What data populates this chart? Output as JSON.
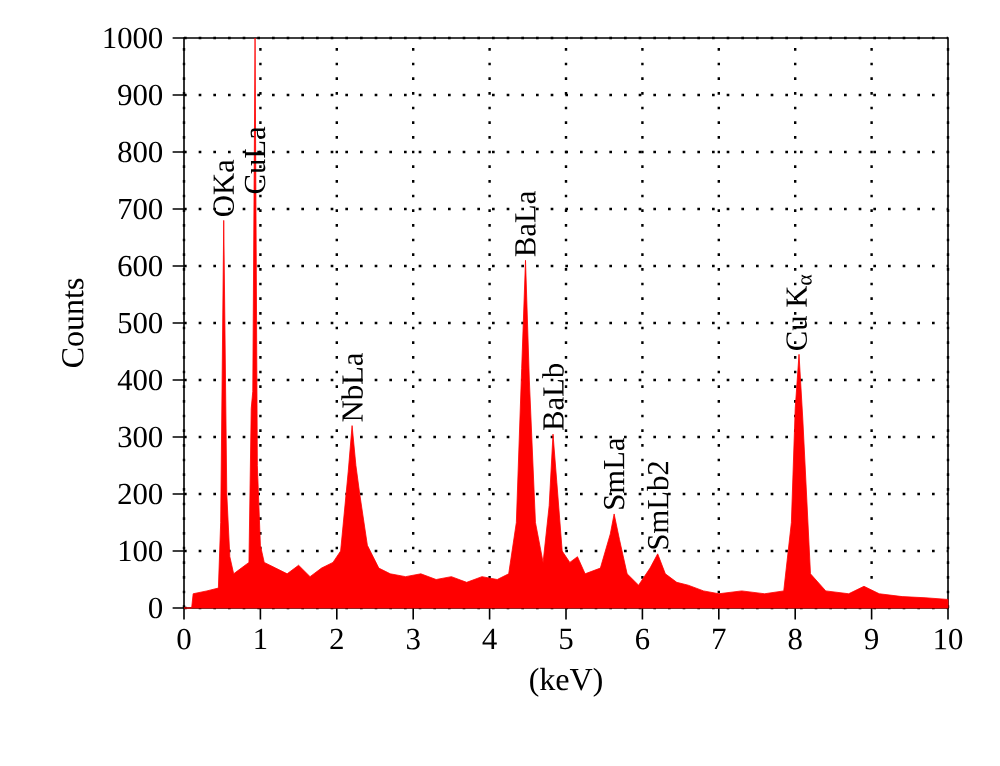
{
  "chart_data": {
    "type": "area",
    "xlabel": "(keV)",
    "ylabel": "Counts",
    "xlim": [
      0,
      10
    ],
    "xticks": [
      0,
      1,
      2,
      3,
      4,
      5,
      6,
      7,
      8,
      9,
      10
    ],
    "ylim": [
      0,
      1000
    ],
    "yticks": [
      0,
      100,
      200,
      300,
      400,
      500,
      600,
      700,
      800,
      900,
      1000
    ],
    "grid": true,
    "series": [
      {
        "color": "#ff0000",
        "x": [
          0,
          0.1,
          0.12,
          0.3,
          0.45,
          0.48,
          0.52,
          0.56,
          0.6,
          0.65,
          0.75,
          0.85,
          0.88,
          0.9,
          0.93,
          0.96,
          1.0,
          1.05,
          1.2,
          1.35,
          1.5,
          1.65,
          1.8,
          1.95,
          2.05,
          2.15,
          2.2,
          2.25,
          2.3,
          2.4,
          2.55,
          2.7,
          2.9,
          3.1,
          3.3,
          3.5,
          3.7,
          3.9,
          4.1,
          4.25,
          4.35,
          4.42,
          4.47,
          4.52,
          4.6,
          4.7,
          4.78,
          4.83,
          4.88,
          4.95,
          5.05,
          5.15,
          5.25,
          5.45,
          5.58,
          5.63,
          5.7,
          5.8,
          5.95,
          6.1,
          6.2,
          6.3,
          6.45,
          6.6,
          6.8,
          7.0,
          7.3,
          7.6,
          7.85,
          7.95,
          8.0,
          8.05,
          8.1,
          8.2,
          8.4,
          8.7,
          8.9,
          9.1,
          9.4,
          9.7,
          10.0
        ],
        "values": [
          0,
          0,
          25,
          30,
          35,
          150,
          680,
          200,
          90,
          60,
          70,
          80,
          350,
          380,
          1000,
          250,
          110,
          80,
          70,
          60,
          75,
          55,
          70,
          80,
          100,
          240,
          320,
          250,
          200,
          110,
          70,
          60,
          55,
          60,
          50,
          55,
          45,
          55,
          50,
          60,
          150,
          420,
          610,
          400,
          150,
          80,
          180,
          305,
          220,
          100,
          80,
          90,
          60,
          70,
          130,
          165,
          120,
          60,
          40,
          70,
          95,
          60,
          45,
          40,
          30,
          25,
          30,
          25,
          30,
          150,
          350,
          445,
          330,
          60,
          30,
          25,
          38,
          25,
          20,
          18,
          15
        ]
      }
    ],
    "annotations": [
      {
        "text": "OKa",
        "x": 0.52,
        "y": 680
      },
      {
        "text": "CuLa",
        "x": 0.93,
        "y": 720
      },
      {
        "text": "NbLa",
        "x": 2.2,
        "y": 320
      },
      {
        "text": "BaLa",
        "x": 4.47,
        "y": 610
      },
      {
        "text": "BaLb",
        "x": 4.83,
        "y": 305
      },
      {
        "text": "SmLa",
        "x": 5.63,
        "y": 165
      },
      {
        "text": "SmLb2",
        "x": 6.2,
        "y": 95
      },
      {
        "text": "Cu K$_{α}$",
        "x": 8.05,
        "y": 445
      }
    ]
  }
}
